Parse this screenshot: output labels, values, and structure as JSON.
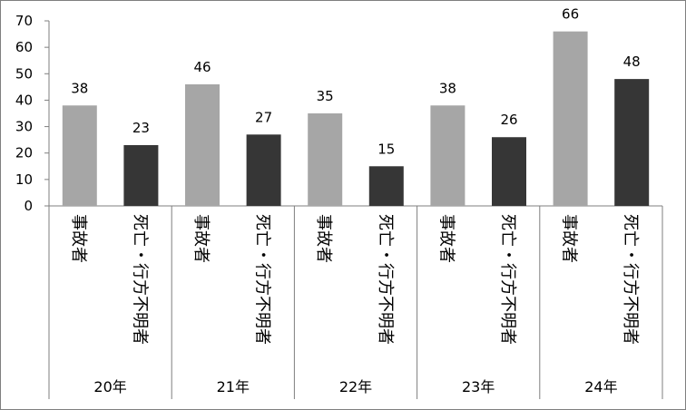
{
  "chart_data": {
    "type": "bar",
    "groups": [
      "20年",
      "21年",
      "22年",
      "23年",
      "24年"
    ],
    "subcategories": [
      "事故者",
      "死亡・行方不明者"
    ],
    "series": [
      {
        "values": [
          38,
          46,
          35,
          38,
          66
        ],
        "color": "#a6a6a6"
      },
      {
        "values": [
          23,
          27,
          15,
          26,
          48
        ],
        "color": "#363636"
      }
    ],
    "ylim": [
      0,
      70
    ],
    "yticks": [
      0,
      10,
      20,
      30,
      40,
      50,
      60,
      70
    ],
    "grid": false,
    "legend": "none",
    "title": "",
    "xlabel": "",
    "ylabel": ""
  }
}
